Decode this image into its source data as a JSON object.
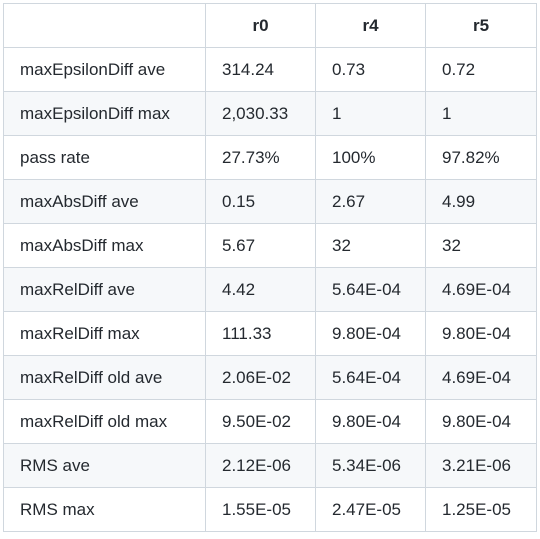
{
  "table": {
    "headers": [
      "",
      "r0",
      "r4",
      "r5"
    ],
    "rows": [
      [
        "maxEpsilonDiff ave",
        "314.24",
        "0.73",
        "0.72"
      ],
      [
        "maxEpsilonDiff max",
        "2,030.33",
        "1",
        "1"
      ],
      [
        "pass rate",
        "27.73%",
        "100%",
        "97.82%"
      ],
      [
        "maxAbsDiff ave",
        "0.15",
        "2.67",
        "4.99"
      ],
      [
        "maxAbsDiff max",
        "5.67",
        "32",
        "32"
      ],
      [
        "maxRelDiff ave",
        "4.42",
        "5.64E-04",
        "4.69E-04"
      ],
      [
        "maxRelDiff max",
        "111.33",
        "9.80E-04",
        "9.80E-04"
      ],
      [
        "maxRelDiff old ave",
        "2.06E-02",
        "5.64E-04",
        "4.69E-04"
      ],
      [
        "maxRelDiff old max",
        "9.50E-02",
        "9.80E-04",
        "9.80E-04"
      ],
      [
        "RMS ave",
        "2.12E-06",
        "5.34E-06",
        "3.21E-06"
      ],
      [
        "RMS max",
        "1.55E-05",
        "2.47E-05",
        "1.25E-05"
      ]
    ]
  },
  "colors": {
    "border": "#d0d7de",
    "alt_row_bg": "#f6f8fa",
    "text": "#24292f"
  }
}
